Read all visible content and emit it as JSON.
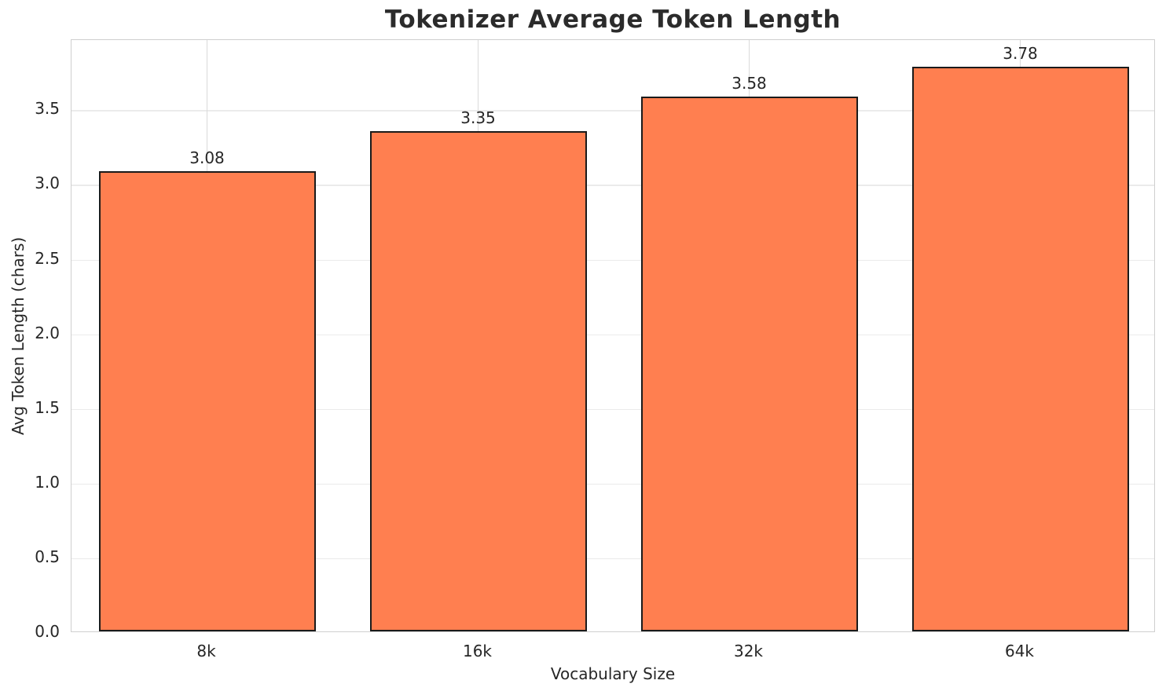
{
  "chart_data": {
    "type": "bar",
    "title": "Tokenizer Average Token Length",
    "xlabel": "Vocabulary Size",
    "ylabel": "Avg Token Length (chars)",
    "categories": [
      "8k",
      "16k",
      "32k",
      "64k"
    ],
    "values": [
      3.08,
      3.35,
      3.58,
      3.78
    ],
    "value_labels": [
      "3.08",
      "3.35",
      "3.58",
      "3.78"
    ],
    "ylim": [
      0,
      3.97
    ],
    "yticks": [
      0.0,
      0.5,
      1.0,
      1.5,
      2.0,
      2.5,
      3.0,
      3.5
    ],
    "ytick_labels": [
      "0.0",
      "0.5",
      "1.0",
      "1.5",
      "2.0",
      "2.5",
      "3.0",
      "3.5"
    ],
    "grid": "both",
    "legend": "none",
    "bar_color": "#FF7F50",
    "bar_edge_color": "#1a1a1a",
    "bar_width_fraction": 0.8
  }
}
